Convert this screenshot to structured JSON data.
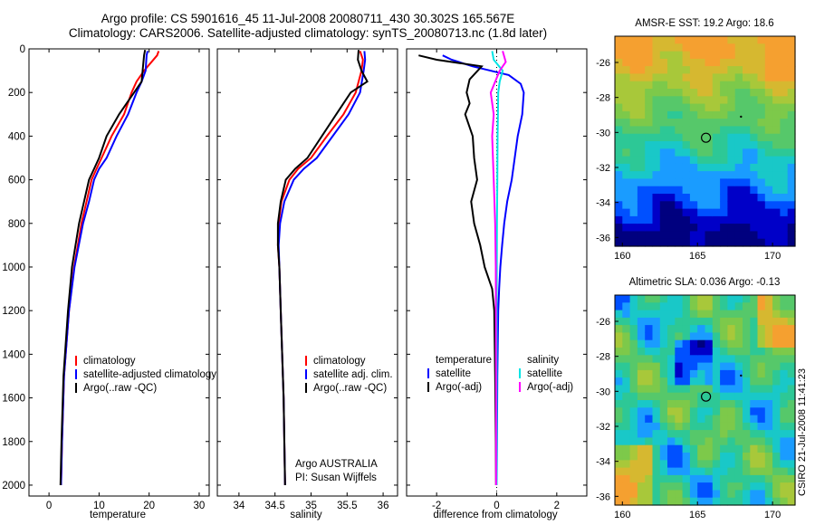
{
  "figure": {
    "title_line1": "Argo profile: CS 5901616_45 11-Jul-2008 20080711_430 30.302S 165.567E",
    "title_line2": "Climatology: CARS2006. Satellite-adjusted climatology: synTS_20080713.nc (1.8d later)",
    "watermark": "CSIRO 21-Jul-2008 11:41:23"
  },
  "colors": {
    "climatology": "#ff0000",
    "satellite": "#0000ff",
    "argo": "#000000",
    "salinity_satellite": "#00e5e5",
    "salinity_argo": "#ff00ff"
  },
  "chart_data": [
    {
      "type": "line",
      "xlabel": "temperature",
      "ylabel": "",
      "xlim": [
        -4,
        32
      ],
      "ylim": [
        2050,
        0
      ],
      "y_reversed": true,
      "xticks": [
        0,
        10,
        20,
        30
      ],
      "yticks": [
        0,
        200,
        400,
        600,
        800,
        1000,
        1200,
        1400,
        1600,
        1800,
        2000
      ],
      "legend": [
        "climatology",
        "satellite-adjusted climatology",
        "Argo(..raw -QC)"
      ],
      "series": [
        {
          "name": "climatology",
          "color": "#ff0000",
          "x": [
            21.9,
            21.6,
            19.0,
            17.5,
            16.5,
            15.0,
            12.5,
            10.5,
            9.5,
            8.5,
            7.5,
            6.5,
            5.0,
            4.0,
            3.0,
            2.6,
            2.4
          ],
          "y": [
            10,
            30,
            100,
            150,
            200,
            300,
            400,
            500,
            550,
            600,
            700,
            800,
            1000,
            1200,
            1500,
            1800,
            2000
          ]
        },
        {
          "name": "satellite-adjusted climatology",
          "color": "#0000ff",
          "x": [
            19.7,
            19.5,
            19.3,
            18.5,
            17.5,
            15.8,
            13.5,
            11.5,
            10.0,
            9.0,
            8.0,
            6.8,
            5.1,
            4.0,
            3.0,
            2.6,
            2.4
          ],
          "y": [
            10,
            30,
            100,
            150,
            200,
            300,
            400,
            500,
            550,
            600,
            700,
            800,
            1000,
            1200,
            1500,
            1800,
            2000
          ]
        },
        {
          "name": "Argo(..raw -QC)",
          "color": "#000000",
          "x": [
            19.2,
            19.0,
            18.7,
            18.5,
            17.0,
            14.0,
            11.5,
            10.0,
            9.0,
            8.0,
            7.0,
            6.0,
            4.6,
            3.8,
            2.9,
            2.5,
            2.3
          ],
          "y": [
            5,
            30,
            100,
            150,
            200,
            300,
            400,
            500,
            550,
            600,
            700,
            800,
            1000,
            1200,
            1500,
            1800,
            2000
          ]
        }
      ]
    },
    {
      "type": "line",
      "xlabel": "salinity",
      "ylabel": "",
      "xlim": [
        33.7,
        36.2
      ],
      "ylim": [
        2050,
        0
      ],
      "y_reversed": true,
      "xticks": [
        34,
        34.5,
        35,
        35.5,
        36
      ],
      "xtick_labels": [
        "34",
        "34.5",
        "35",
        "35.5",
        "36"
      ],
      "legend": [
        "climatology",
        "satellite adj. clim.",
        "Argo(..raw -QC)"
      ],
      "annotation": [
        "Argo AUSTRALIA",
        "PI: Susan Wijffels"
      ],
      "series": [
        {
          "name": "climatology",
          "color": "#ff0000",
          "x": [
            35.68,
            35.72,
            35.7,
            35.62,
            35.45,
            35.22,
            35.0,
            34.82,
            34.7,
            34.59,
            34.55,
            34.54,
            34.56,
            34.58,
            34.62,
            34.64
          ],
          "y": [
            10,
            50,
            100,
            200,
            300,
            400,
            500,
            550,
            600,
            700,
            800,
            900,
            1000,
            1200,
            1600,
            2000
          ]
        },
        {
          "name": "satellite adj. clim.",
          "color": "#0000ff",
          "x": [
            35.74,
            35.75,
            35.73,
            35.68,
            35.52,
            35.3,
            35.08,
            34.9,
            34.76,
            34.63,
            34.57,
            34.55,
            34.56,
            34.58,
            34.62,
            34.64
          ],
          "y": [
            10,
            50,
            100,
            200,
            300,
            400,
            500,
            550,
            600,
            700,
            800,
            900,
            1000,
            1200,
            1600,
            2000
          ]
        },
        {
          "name": "Argo(..raw -QC)",
          "color": "#000000",
          "x": [
            35.66,
            35.65,
            35.7,
            35.78,
            35.55,
            35.35,
            35.15,
            34.95,
            34.78,
            34.65,
            34.58,
            34.54,
            34.54,
            34.56,
            34.58,
            34.62,
            34.64
          ],
          "y": [
            5,
            50,
            100,
            150,
            200,
            300,
            400,
            500,
            550,
            600,
            700,
            800,
            900,
            1000,
            1200,
            1600,
            2000
          ]
        }
      ]
    },
    {
      "type": "line",
      "xlabel": "difference from climatology",
      "ylabel": "",
      "xlim": [
        -3,
        3
      ],
      "ylim": [
        2050,
        0
      ],
      "y_reversed": true,
      "xticks": [
        -2,
        0,
        2
      ],
      "legend_group1_title": "temperature",
      "legend_group2_title": "salinity",
      "legend": [
        "satellite",
        "Argo(-adj)",
        "satellite",
        "Argo(-adj)"
      ],
      "series": [
        {
          "name": "temperature satellite",
          "color": "#0000ff",
          "x": [
            -1.8,
            -1.5,
            -0.8,
            0.4,
            0.8,
            0.9,
            0.85,
            0.7,
            0.6,
            0.5,
            0.35,
            0.25,
            0.18,
            0.12,
            0.08,
            0.05,
            0.02,
            0.01,
            0.0
          ],
          "y": [
            30,
            50,
            80,
            120,
            160,
            200,
            300,
            400,
            500,
            600,
            700,
            800,
            900,
            1000,
            1100,
            1200,
            1500,
            1800,
            2000
          ]
        },
        {
          "name": "temperature Argo(-adj)",
          "color": "#000000",
          "x": [
            -2.6,
            -2.0,
            -0.5,
            -0.9,
            -1.0,
            -0.9,
            -1.05,
            -0.8,
            -0.75,
            -0.65,
            -0.85,
            -0.75,
            -0.55,
            -0.4,
            -0.15,
            -0.08,
            -0.05,
            -0.03,
            -0.02
          ],
          "y": [
            30,
            50,
            80,
            140,
            200,
            250,
            300,
            400,
            500,
            600,
            700,
            800,
            900,
            1000,
            1100,
            1200,
            1500,
            1800,
            2000
          ]
        },
        {
          "name": "salinity satellite",
          "color": "#00e5e5",
          "x": [
            -0.15,
            -0.1,
            0.2,
            0.1,
            0.05,
            0.03,
            0.02,
            0.01,
            0.0,
            0.0,
            0.0
          ],
          "y": [
            10,
            50,
            100,
            150,
            200,
            400,
            600,
            800,
            1200,
            1600,
            2000
          ]
        },
        {
          "name": "salinity Argo(-adj)",
          "color": "#ff00ff",
          "x": [
            0.2,
            0.3,
            0.1,
            -0.2,
            -0.1,
            -0.15,
            -0.1,
            -0.05,
            -0.03,
            -0.02,
            -0.02
          ],
          "y": [
            10,
            60,
            100,
            200,
            300,
            400,
            600,
            800,
            1000,
            1500,
            2000
          ]
        }
      ]
    }
  ],
  "maps": [
    {
      "title": "AMSR-E SST: 19.2 Argo: 18.6",
      "xticks": [
        "160",
        "165",
        "170"
      ],
      "yticks": [
        "-26",
        "-28",
        "-30",
        "-32",
        "-34",
        "-36"
      ],
      "xlim": [
        159.5,
        171.5
      ],
      "ylim": [
        -36.5,
        -24.5
      ],
      "argo_lon": 165.567,
      "argo_lat": -30.302
    },
    {
      "title": "Altimetric SLA: 0.036 Argo: -0.13",
      "xticks": [
        "160",
        "165",
        "170"
      ],
      "yticks": [
        "-26",
        "-28",
        "-30",
        "-32",
        "-34",
        "-36"
      ],
      "xlim": [
        159.5,
        171.5
      ],
      "ylim": [
        -36.5,
        -24.5
      ],
      "argo_lon": 165.567,
      "argo_lat": -30.302
    }
  ]
}
